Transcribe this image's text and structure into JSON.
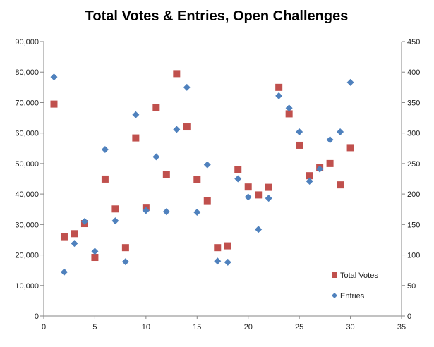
{
  "chart_data": {
    "type": "scatter",
    "title": "Total Votes & Entries, Open Challenges",
    "xlabel": "",
    "ylabel": "",
    "xlim": [
      0,
      35
    ],
    "x_ticks": [
      0,
      5,
      10,
      15,
      20,
      25,
      30,
      35
    ],
    "ylim_left": [
      0,
      90000
    ],
    "y_left_ticks": [
      0,
      10000,
      20000,
      30000,
      40000,
      50000,
      60000,
      70000,
      80000,
      90000
    ],
    "y_left_tick_labels": [
      "0",
      "10,000",
      "20,000",
      "30,000",
      "40,000",
      "50,000",
      "60,000",
      "70,000",
      "80,000",
      "90,000"
    ],
    "ylim_right": [
      0,
      450
    ],
    "y_right_ticks": [
      0,
      50,
      100,
      150,
      200,
      250,
      300,
      350,
      400,
      450
    ],
    "y_right_tick_labels": [
      "0",
      "50",
      "100",
      "150",
      "200",
      "250",
      "300",
      "350",
      "400",
      "450"
    ],
    "grid": false,
    "legend_position": "bottom-right",
    "series": [
      {
        "name": "Total Votes",
        "axis": "left",
        "marker": "square",
        "color": "#c0504d",
        "points": [
          [
            1,
            69500
          ],
          [
            2,
            26000
          ],
          [
            3,
            27000
          ],
          [
            4,
            30300
          ],
          [
            5,
            19200
          ],
          [
            6,
            44900
          ],
          [
            7,
            35100
          ],
          [
            8,
            22400
          ],
          [
            9,
            58400
          ],
          [
            10,
            35600
          ],
          [
            11,
            68300
          ],
          [
            12,
            46300
          ],
          [
            13,
            79500
          ],
          [
            14,
            62000
          ],
          [
            15,
            44700
          ],
          [
            16,
            37800
          ],
          [
            17,
            22400
          ],
          [
            18,
            23000
          ],
          [
            19,
            48000
          ],
          [
            20,
            42300
          ],
          [
            21,
            39700
          ],
          [
            22,
            42200
          ],
          [
            23,
            75000
          ],
          [
            24,
            66300
          ],
          [
            25,
            56000
          ],
          [
            26,
            46000
          ],
          [
            27,
            48600
          ],
          [
            28,
            50000
          ],
          [
            29,
            43000
          ],
          [
            30,
            55200
          ]
        ]
      },
      {
        "name": "Entries",
        "axis": "right",
        "marker": "diamond",
        "color": "#4f81bd",
        "points": [
          [
            1,
            392
          ],
          [
            2,
            72
          ],
          [
            3,
            119
          ],
          [
            4,
            155
          ],
          [
            5,
            106
          ],
          [
            6,
            273
          ],
          [
            7,
            156
          ],
          [
            8,
            89
          ],
          [
            9,
            330
          ],
          [
            10,
            173
          ],
          [
            11,
            261
          ],
          [
            12,
            171
          ],
          [
            13,
            306
          ],
          [
            14,
            375
          ],
          [
            15,
            170
          ],
          [
            16,
            248
          ],
          [
            17,
            90
          ],
          [
            18,
            88
          ],
          [
            19,
            225
          ],
          [
            20,
            195
          ],
          [
            21,
            142
          ],
          [
            22,
            193
          ],
          [
            23,
            361
          ],
          [
            24,
            341
          ],
          [
            25,
            302
          ],
          [
            26,
            221
          ],
          [
            27,
            241
          ],
          [
            28,
            289
          ],
          [
            29,
            302
          ],
          [
            30,
            383
          ]
        ]
      }
    ]
  }
}
